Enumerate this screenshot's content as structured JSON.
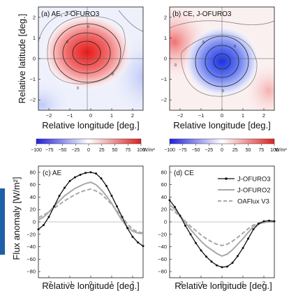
{
  "maps": {
    "ylabel": "Relative latitude [deg.]",
    "xlabel": "Relative longitude [deg.]",
    "xticks": [
      "−2",
      "−1",
      "0",
      "1",
      "2"
    ],
    "yticks": [
      "2",
      "1",
      "0",
      "−1",
      "−2"
    ],
    "panels": [
      {
        "title": "(a) AE, J-OFURO3",
        "kind": "AE",
        "contour_labels": [
          "0",
          "0",
          "0",
          "0"
        ]
      },
      {
        "title": "(b) CE, J-OFURO3",
        "kind": "CE",
        "contour_labels": [
          "0",
          "0",
          "0",
          "0"
        ]
      }
    ]
  },
  "colorbar": {
    "ticks": [
      "−100",
      "−75",
      "−50",
      "−25",
      "0",
      "25",
      "50",
      "75",
      "100"
    ],
    "unit": "W/m²",
    "min_color": "#2020e0",
    "mid_color": "#ffffff",
    "max_color": "#e02020"
  },
  "chart_data": [
    {
      "type": "line",
      "title": "(c) AE",
      "xlabel": "Relative longitude [deg.]",
      "ylabel": "Flux anomaly [W/m²]",
      "xlim": [
        -2.5,
        2.5
      ],
      "ylim": [
        -90,
        90
      ],
      "xticks": [
        "−2",
        "−1",
        "0",
        "1",
        "2"
      ],
      "yticks": [
        "80",
        "60",
        "40",
        "20",
        "0",
        "−20",
        "−40",
        "−60",
        "−80"
      ],
      "x": [
        -2.5,
        -2.25,
        -2.0,
        -1.75,
        -1.5,
        -1.25,
        -1.0,
        -0.75,
        -0.5,
        -0.25,
        0.0,
        0.25,
        0.5,
        0.75,
        1.0,
        1.25,
        1.5,
        1.75,
        2.0,
        2.25,
        2.5
      ],
      "series": [
        {
          "name": "J-OFURO3",
          "values": [
            -12,
            -5,
            8,
            25,
            42,
            55,
            66,
            72,
            76,
            79,
            80,
            78,
            70,
            58,
            42,
            25,
            8,
            -10,
            -24,
            -33,
            -39
          ]
        },
        {
          "name": "J-OFURO2",
          "values": [
            3,
            8,
            16,
            25,
            34,
            42,
            48,
            54,
            58,
            62,
            64,
            60,
            52,
            42,
            30,
            16,
            2,
            -8,
            -15,
            -18,
            -19
          ]
        },
        {
          "name": "OAFlux V3",
          "values": [
            7,
            11,
            16,
            22,
            28,
            34,
            39,
            44,
            48,
            51,
            53,
            50,
            45,
            37,
            28,
            18,
            8,
            -3,
            -12,
            -16,
            -18
          ]
        }
      ]
    },
    {
      "type": "line",
      "title": "(d) CE",
      "xlabel": "Relative longitude [deg.]",
      "ylabel": "",
      "xlim": [
        -2.5,
        2.5
      ],
      "ylim": [
        -90,
        90
      ],
      "xticks": [
        "−2",
        "−1",
        "0",
        "1",
        "2"
      ],
      "yticks": [
        "80",
        "60",
        "40",
        "20",
        "0",
        "−20",
        "−40",
        "−60",
        "−80"
      ],
      "x": [
        -2.5,
        -2.25,
        -2.0,
        -1.75,
        -1.5,
        -1.25,
        -1.0,
        -0.75,
        -0.5,
        -0.25,
        0.0,
        0.25,
        0.5,
        0.75,
        1.0,
        1.25,
        1.5,
        1.75,
        2.0,
        2.25,
        2.5
      ],
      "series": [
        {
          "name": "J-OFURO3",
          "values": [
            35,
            24,
            10,
            -6,
            -20,
            -34,
            -46,
            -56,
            -64,
            -70,
            -73,
            -72,
            -66,
            -55,
            -42,
            -27,
            -12,
            -3,
            1,
            2,
            1
          ]
        },
        {
          "name": "J-OFURO2",
          "values": [
            28,
            20,
            10,
            -1,
            -12,
            -22,
            -31,
            -39,
            -45,
            -51,
            -55,
            -52,
            -45,
            -36,
            -27,
            -17,
            -8,
            -3,
            -1,
            0,
            0
          ]
        },
        {
          "name": "OAFlux V3",
          "values": [
            22,
            16,
            9,
            1,
            -7,
            -14,
            -21,
            -27,
            -32,
            -36,
            -38,
            -36,
            -31,
            -25,
            -18,
            -11,
            -5,
            -2,
            0,
            1,
            1
          ]
        }
      ],
      "legend": "top-right"
    }
  ],
  "legend_styles": {
    "J-OFURO3": {
      "color": "#111111",
      "dash": "",
      "markers": true
    },
    "J-OFURO2": {
      "color": "#a8a8a8",
      "dash": "",
      "markers": false
    },
    "OAFlux V3": {
      "color": "#a8a8a8",
      "dash": "dashed",
      "markers": false
    }
  }
}
